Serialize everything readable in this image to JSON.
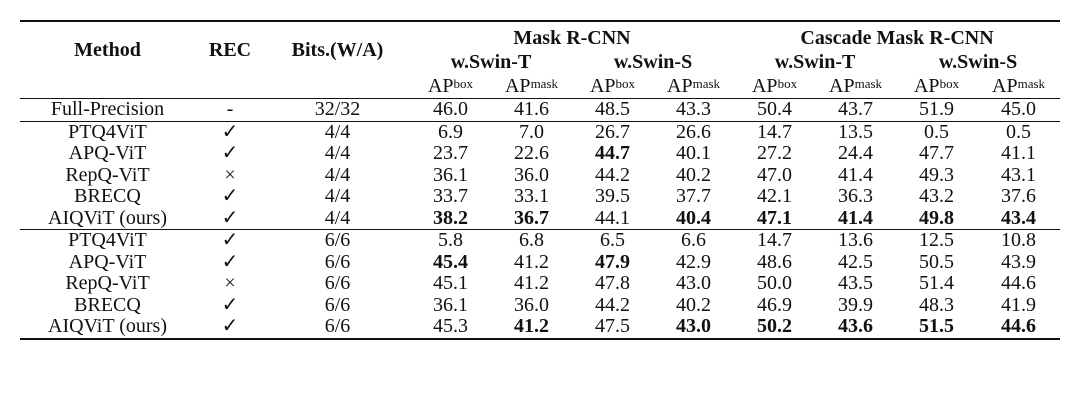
{
  "header": {
    "method": "Method",
    "rec": "REC",
    "bits": "Bits.(W/A)",
    "group1": "Mask R-CNN",
    "group2": "Cascade Mask R-CNN",
    "backbone_t": "w.Swin-T",
    "backbone_s": "w.Swin-S",
    "ap": "AP",
    "box": "box",
    "mask": "mask"
  },
  "rows": [
    {
      "method": "Full-Precision",
      "rec": "-",
      "bits": "32/32",
      "v": [
        "46.0",
        "41.6",
        "48.5",
        "43.3",
        "50.4",
        "43.7",
        "51.9",
        "45.0"
      ],
      "bold": [
        false,
        false,
        false,
        false,
        false,
        false,
        false,
        false
      ]
    },
    {
      "method": "PTQ4ViT",
      "rec": "✓",
      "bits": "4/4",
      "v": [
        "6.9",
        "7.0",
        "26.7",
        "26.6",
        "14.7",
        "13.5",
        "0.5",
        "0.5"
      ],
      "bold": [
        false,
        false,
        false,
        false,
        false,
        false,
        false,
        false
      ]
    },
    {
      "method": "APQ-ViT",
      "rec": "✓",
      "bits": "4/4",
      "v": [
        "23.7",
        "22.6",
        "44.7",
        "40.1",
        "27.2",
        "24.4",
        "47.7",
        "41.1"
      ],
      "bold": [
        false,
        false,
        true,
        false,
        false,
        false,
        false,
        false
      ]
    },
    {
      "method": "RepQ-ViT",
      "rec": "×",
      "bits": "4/4",
      "v": [
        "36.1",
        "36.0",
        "44.2",
        "40.2",
        "47.0",
        "41.4",
        "49.3",
        "43.1"
      ],
      "bold": [
        false,
        false,
        false,
        false,
        false,
        false,
        false,
        false
      ]
    },
    {
      "method": "BRECQ",
      "rec": "✓",
      "bits": "4/4",
      "v": [
        "33.7",
        "33.1",
        "39.5",
        "37.7",
        "42.1",
        "36.3",
        "43.2",
        "37.6"
      ],
      "bold": [
        false,
        false,
        false,
        false,
        false,
        false,
        false,
        false
      ]
    },
    {
      "method": "AIQViT (ours)",
      "rec": "✓",
      "bits": "4/4",
      "v": [
        "38.2",
        "36.7",
        "44.1",
        "40.4",
        "47.1",
        "41.4",
        "49.8",
        "43.4"
      ],
      "bold": [
        true,
        true,
        false,
        true,
        true,
        true,
        true,
        true
      ]
    },
    {
      "method": "PTQ4ViT",
      "rec": "✓",
      "bits": "6/6",
      "v": [
        "5.8",
        "6.8",
        "6.5",
        "6.6",
        "14.7",
        "13.6",
        "12.5",
        "10.8"
      ],
      "bold": [
        false,
        false,
        false,
        false,
        false,
        false,
        false,
        false
      ]
    },
    {
      "method": "APQ-ViT",
      "rec": "✓",
      "bits": "6/6",
      "v": [
        "45.4",
        "41.2",
        "47.9",
        "42.9",
        "48.6",
        "42.5",
        "50.5",
        "43.9"
      ],
      "bold": [
        true,
        false,
        true,
        false,
        false,
        false,
        false,
        false
      ]
    },
    {
      "method": "RepQ-ViT",
      "rec": "×",
      "bits": "6/6",
      "v": [
        "45.1",
        "41.2",
        "47.8",
        "43.0",
        "50.0",
        "43.5",
        "51.4",
        "44.6"
      ],
      "bold": [
        false,
        false,
        false,
        false,
        false,
        false,
        false,
        false
      ]
    },
    {
      "method": "BRECQ",
      "rec": "✓",
      "bits": "6/6",
      "v": [
        "36.1",
        "36.0",
        "44.2",
        "40.2",
        "46.9",
        "39.9",
        "48.3",
        "41.9"
      ],
      "bold": [
        false,
        false,
        false,
        false,
        false,
        false,
        false,
        false
      ]
    },
    {
      "method": "AIQViT (ours)",
      "rec": "✓",
      "bits": "6/6",
      "v": [
        "45.3",
        "41.2",
        "47.5",
        "43.0",
        "50.2",
        "43.6",
        "51.5",
        "44.6"
      ],
      "bold": [
        false,
        true,
        false,
        true,
        true,
        true,
        true,
        true
      ]
    }
  ]
}
